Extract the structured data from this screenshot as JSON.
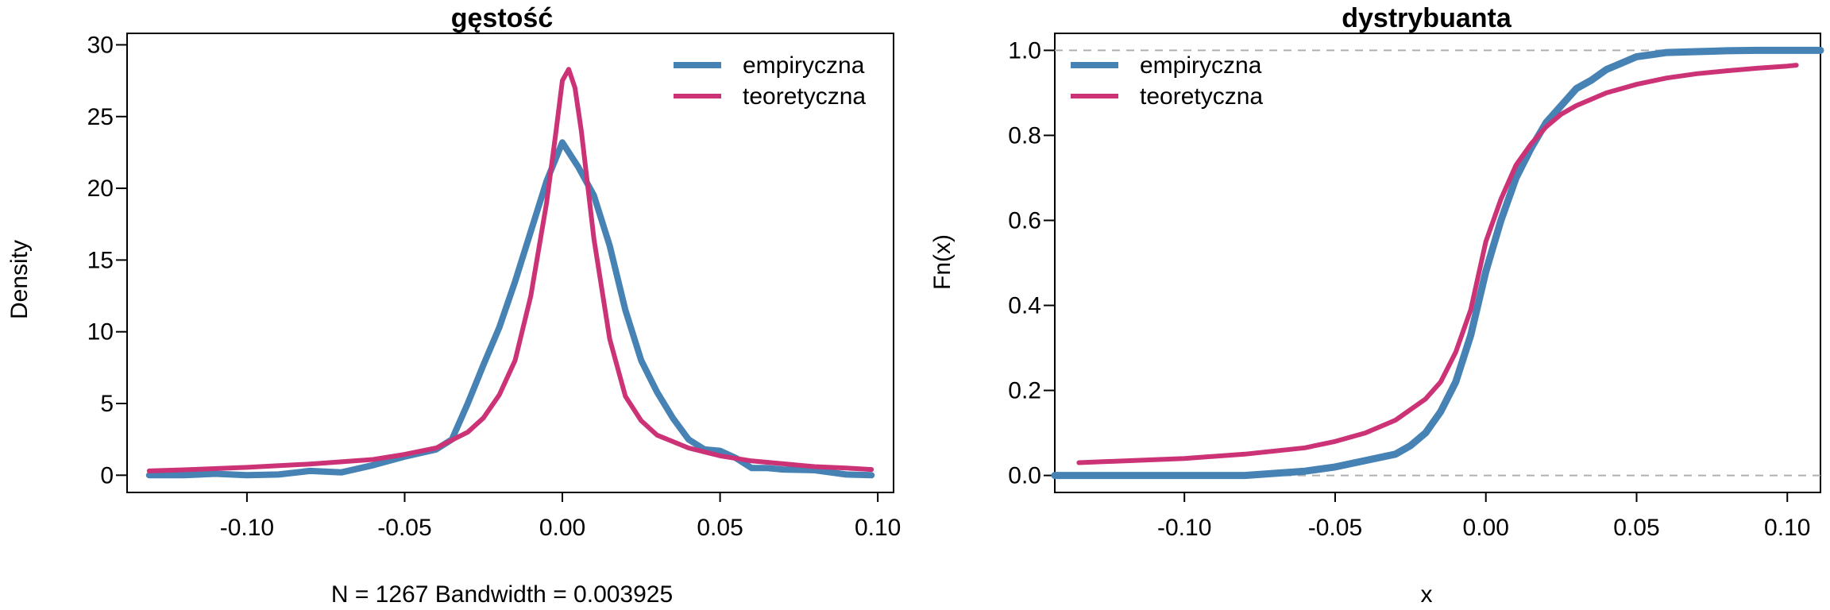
{
  "chart_data": [
    {
      "type": "line",
      "title": "gęstość",
      "xlabel": "N = 1267   Bandwidth = 0.003925",
      "ylabel": "Density",
      "xlim": [
        -0.138,
        0.105
      ],
      "ylim": [
        -1.2,
        30.8
      ],
      "xticks": [
        -0.1,
        -0.05,
        0.0,
        0.05,
        0.1
      ],
      "xtick_labels": [
        "-0.10",
        "-0.05",
        "0.00",
        "0.05",
        "0.10"
      ],
      "yticks": [
        0,
        5,
        10,
        15,
        20,
        25,
        30
      ],
      "ytick_labels": [
        "0",
        "5",
        "10",
        "15",
        "20",
        "25",
        "30"
      ],
      "legend_position": "top-right",
      "series": [
        {
          "name": "empiryczna",
          "color": "#4682B4",
          "x": [
            -0.131,
            -0.12,
            -0.11,
            -0.1,
            -0.09,
            -0.08,
            -0.07,
            -0.06,
            -0.05,
            -0.04,
            -0.035,
            -0.03,
            -0.025,
            -0.02,
            -0.015,
            -0.01,
            -0.005,
            0.0,
            0.005,
            0.01,
            0.015,
            0.02,
            0.025,
            0.03,
            0.035,
            0.04,
            0.045,
            0.05,
            0.055,
            0.06,
            0.065,
            0.07,
            0.08,
            0.09,
            0.098
          ],
          "y": [
            0.0,
            0.0,
            0.1,
            0.0,
            0.05,
            0.3,
            0.2,
            0.7,
            1.3,
            1.8,
            2.5,
            5.0,
            7.7,
            10.3,
            13.5,
            17.0,
            20.5,
            23.2,
            21.5,
            19.5,
            16.0,
            11.5,
            8.0,
            5.8,
            4.0,
            2.5,
            1.8,
            1.7,
            1.2,
            0.5,
            0.5,
            0.4,
            0.35,
            0.05,
            0.0
          ]
        },
        {
          "name": "teoretyczna",
          "color": "#CC3377",
          "x": [
            -0.131,
            -0.12,
            -0.1,
            -0.08,
            -0.06,
            -0.05,
            -0.04,
            -0.03,
            -0.025,
            -0.02,
            -0.015,
            -0.01,
            -0.005,
            -0.002,
            0.0,
            0.002,
            0.004,
            0.006,
            0.01,
            0.015,
            0.02,
            0.025,
            0.03,
            0.04,
            0.05,
            0.06,
            0.07,
            0.08,
            0.09,
            0.098
          ],
          "y": [
            0.3,
            0.38,
            0.55,
            0.78,
            1.1,
            1.45,
            1.9,
            3.0,
            4.0,
            5.6,
            8.0,
            12.5,
            19.0,
            24.0,
            27.5,
            28.3,
            27.0,
            24.0,
            16.5,
            9.5,
            5.5,
            3.8,
            2.8,
            1.9,
            1.35,
            1.0,
            0.8,
            0.6,
            0.5,
            0.4
          ]
        }
      ]
    },
    {
      "type": "line",
      "title": "dystrybuanta",
      "xlabel": "x",
      "ylabel": "Fn(x)",
      "xlim": [
        -0.143,
        0.111
      ],
      "ylim": [
        -0.04,
        1.04
      ],
      "xticks": [
        -0.1,
        -0.05,
        0.0,
        0.05,
        0.1
      ],
      "xtick_labels": [
        "-0.10",
        "-0.05",
        "0.00",
        "0.05",
        "0.10"
      ],
      "yticks": [
        0.0,
        0.2,
        0.4,
        0.6,
        0.8,
        1.0
      ],
      "ytick_labels": [
        "0.0",
        "0.2",
        "0.4",
        "0.6",
        "0.8",
        "1.0"
      ],
      "hlines": [
        0,
        1
      ],
      "legend_position": "top-left",
      "series": [
        {
          "name": "empiryczna",
          "color": "#4682B4",
          "x": [
            -0.143,
            -0.08,
            -0.06,
            -0.05,
            -0.04,
            -0.03,
            -0.025,
            -0.02,
            -0.015,
            -0.01,
            -0.005,
            0.0,
            0.005,
            0.01,
            0.015,
            0.02,
            0.025,
            0.03,
            0.035,
            0.04,
            0.045,
            0.05,
            0.055,
            0.06,
            0.07,
            0.08,
            0.09,
            0.1,
            0.111
          ],
          "y": [
            0.0,
            0.0,
            0.01,
            0.02,
            0.035,
            0.05,
            0.07,
            0.1,
            0.15,
            0.22,
            0.33,
            0.48,
            0.6,
            0.7,
            0.77,
            0.83,
            0.87,
            0.91,
            0.93,
            0.955,
            0.97,
            0.985,
            0.99,
            0.995,
            0.997,
            0.999,
            1.0,
            1.0,
            1.0
          ]
        },
        {
          "name": "teoretyczna",
          "color": "#CC3377",
          "x": [
            -0.135,
            -0.1,
            -0.08,
            -0.06,
            -0.05,
            -0.04,
            -0.03,
            -0.02,
            -0.015,
            -0.01,
            -0.005,
            0.0,
            0.005,
            0.01,
            0.015,
            0.02,
            0.025,
            0.03,
            0.04,
            0.05,
            0.06,
            0.07,
            0.08,
            0.09,
            0.1,
            0.103
          ],
          "y": [
            0.03,
            0.04,
            0.05,
            0.065,
            0.08,
            0.1,
            0.13,
            0.18,
            0.22,
            0.29,
            0.39,
            0.55,
            0.65,
            0.73,
            0.78,
            0.82,
            0.85,
            0.87,
            0.9,
            0.92,
            0.935,
            0.945,
            0.952,
            0.958,
            0.963,
            0.965
          ]
        }
      ]
    }
  ]
}
